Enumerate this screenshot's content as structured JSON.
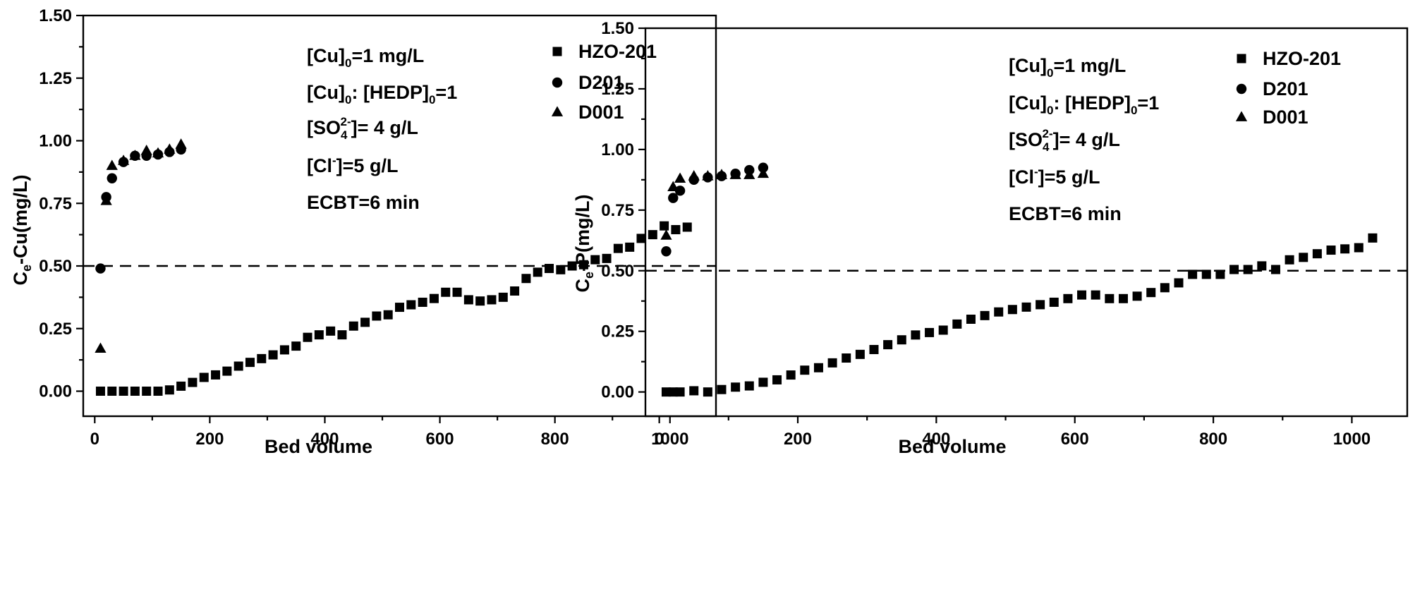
{
  "chart_data": [
    {
      "type": "scatter",
      "xlabel": "Bed volume",
      "ylabel_main": "C",
      "ylabel_sub": "e",
      "ylabel_rest": "-Cu(mg/L)",
      "xlim": [
        -20,
        1080
      ],
      "ylim": [
        -0.1,
        1.5
      ],
      "xticks": [
        0,
        200,
        400,
        600,
        800,
        1000
      ],
      "xtick_labels": [
        "0",
        "200",
        "400",
        "600",
        "800",
        "1000"
      ],
      "yticks": [
        0,
        0.25,
        0.5,
        0.75,
        1.0,
        1.25,
        1.5
      ],
      "ytick_labels": [
        "0.00",
        "0.25",
        "0.50",
        "0.75",
        "1.00",
        "1.25",
        "1.50"
      ],
      "reference_line_y": 0.5,
      "grid": false,
      "legend_position": "top-right",
      "annotations": [
        {
          "main": "[Cu]",
          "sub": "0",
          "rest": "=1 mg/L"
        },
        {
          "main": "[Cu]",
          "sub": "0",
          "rest": ": [HEDP]",
          "sub2": "0",
          "rest2": "=1"
        },
        {
          "main": "[SO",
          "sub": "4",
          "sup": "2-",
          "rest": "]= 4 g/L"
        },
        {
          "main": "[Cl",
          "sup": "-",
          "rest": "]=5 g/L"
        },
        {
          "main": "ECBT=6 min"
        }
      ],
      "series": [
        {
          "name": "HZO-201",
          "marker": "square",
          "x": [
            10,
            30,
            50,
            70,
            90,
            110,
            130,
            150,
            170,
            190,
            210,
            230,
            250,
            270,
            290,
            310,
            330,
            350,
            370,
            390,
            410,
            430,
            450,
            470,
            490,
            510,
            530,
            550,
            570,
            590,
            610,
            630,
            650,
            670,
            690,
            710,
            730,
            750,
            770,
            790,
            810,
            830,
            850,
            870,
            890,
            910,
            930,
            950,
            970,
            990,
            1010,
            1030
          ],
          "y": [
            0,
            0,
            0,
            0,
            0,
            0,
            0.005,
            0.02,
            0.035,
            0.055,
            0.065,
            0.08,
            0.1,
            0.115,
            0.13,
            0.145,
            0.165,
            0.18,
            0.215,
            0.225,
            0.24,
            0.225,
            0.26,
            0.275,
            0.3,
            0.305,
            0.335,
            0.345,
            0.355,
            0.37,
            0.395,
            0.395,
            0.365,
            0.36,
            0.365,
            0.375,
            0.4,
            0.45,
            0.475,
            0.49,
            0.485,
            0.5,
            0.505,
            0.525,
            0.53,
            0.57,
            0.575,
            0.61,
            0.625,
            0.66,
            0.645,
            0.655
          ]
        },
        {
          "name": "D201",
          "marker": "circle",
          "x": [
            10,
            20,
            30,
            50,
            70,
            90,
            110,
            130,
            150
          ],
          "y": [
            0.49,
            0.775,
            0.85,
            0.915,
            0.94,
            0.94,
            0.945,
            0.955,
            0.965
          ]
        },
        {
          "name": "D001",
          "marker": "triangle",
          "x": [
            10,
            20,
            30,
            50,
            70,
            90,
            110,
            130,
            150
          ],
          "y": [
            0.17,
            0.76,
            0.9,
            0.92,
            0.94,
            0.96,
            0.95,
            0.965,
            0.985
          ]
        }
      ]
    },
    {
      "type": "scatter",
      "xlabel": "Bed volume",
      "ylabel_main": "C",
      "ylabel_sub": "e",
      "ylabel_rest": "-P(mg/L)",
      "xlim": [
        -20,
        1080
      ],
      "ylim": [
        -0.1,
        1.5
      ],
      "xticks": [
        0,
        200,
        400,
        600,
        800,
        1000
      ],
      "xtick_labels": [
        "0",
        "200",
        "400",
        "600",
        "800",
        "1000"
      ],
      "yticks": [
        0,
        0.25,
        0.5,
        0.75,
        1.0,
        1.25,
        1.5
      ],
      "ytick_labels": [
        "0.00",
        "0.25",
        "0.50",
        "0.75",
        "1.00",
        "1.25",
        "1.50"
      ],
      "reference_line_y": 0.5,
      "grid": false,
      "legend_position": "top-right",
      "annotations": [
        {
          "main": "[Cu]",
          "sub": "0",
          "rest": "=1 mg/L"
        },
        {
          "main": "[Cu]",
          "sub": "0",
          "rest": ": [HEDP]",
          "sub2": "0",
          "rest2": "=1"
        },
        {
          "main": "[SO",
          "sub": "4",
          "sup": "2-",
          "rest": "]= 4 g/L"
        },
        {
          "main": "[Cl",
          "sup": "-",
          "rest": "]=5 g/L"
        },
        {
          "main": "ECBT=6 min"
        }
      ],
      "series": [
        {
          "name": "HZO-201",
          "marker": "square",
          "x": [
            10,
            20,
            30,
            50,
            70,
            90,
            110,
            130,
            150,
            170,
            190,
            210,
            230,
            250,
            270,
            290,
            310,
            330,
            350,
            370,
            390,
            410,
            430,
            450,
            470,
            490,
            510,
            530,
            550,
            570,
            590,
            610,
            630,
            650,
            670,
            690,
            710,
            730,
            750,
            770,
            790,
            810,
            830,
            850,
            870,
            890,
            910,
            930,
            950,
            970,
            990,
            1010,
            1030
          ],
          "y": [
            0,
            0,
            0,
            0.005,
            0,
            0.01,
            0.02,
            0.025,
            0.04,
            0.05,
            0.07,
            0.09,
            0.1,
            0.12,
            0.14,
            0.155,
            0.175,
            0.195,
            0.215,
            0.235,
            0.245,
            0.255,
            0.28,
            0.3,
            0.315,
            0.33,
            0.34,
            0.35,
            0.36,
            0.37,
            0.385,
            0.4,
            0.4,
            0.385,
            0.385,
            0.395,
            0.41,
            0.43,
            0.45,
            0.485,
            0.485,
            0.485,
            0.505,
            0.505,
            0.52,
            0.505,
            0.545,
            0.555,
            0.57,
            0.585,
            0.59,
            0.595,
            0.635
          ]
        },
        {
          "name": "D201",
          "marker": "circle",
          "x": [
            10,
            20,
            30,
            50,
            70,
            90,
            110,
            130,
            150
          ],
          "y": [
            0.58,
            0.8,
            0.83,
            0.875,
            0.885,
            0.89,
            0.9,
            0.915,
            0.925
          ]
        },
        {
          "name": "D001",
          "marker": "triangle",
          "x": [
            10,
            20,
            30,
            50,
            70,
            90,
            110,
            130,
            150
          ],
          "y": [
            0.645,
            0.845,
            0.88,
            0.89,
            0.89,
            0.895,
            0.895,
            0.895,
            0.9
          ]
        }
      ]
    }
  ]
}
